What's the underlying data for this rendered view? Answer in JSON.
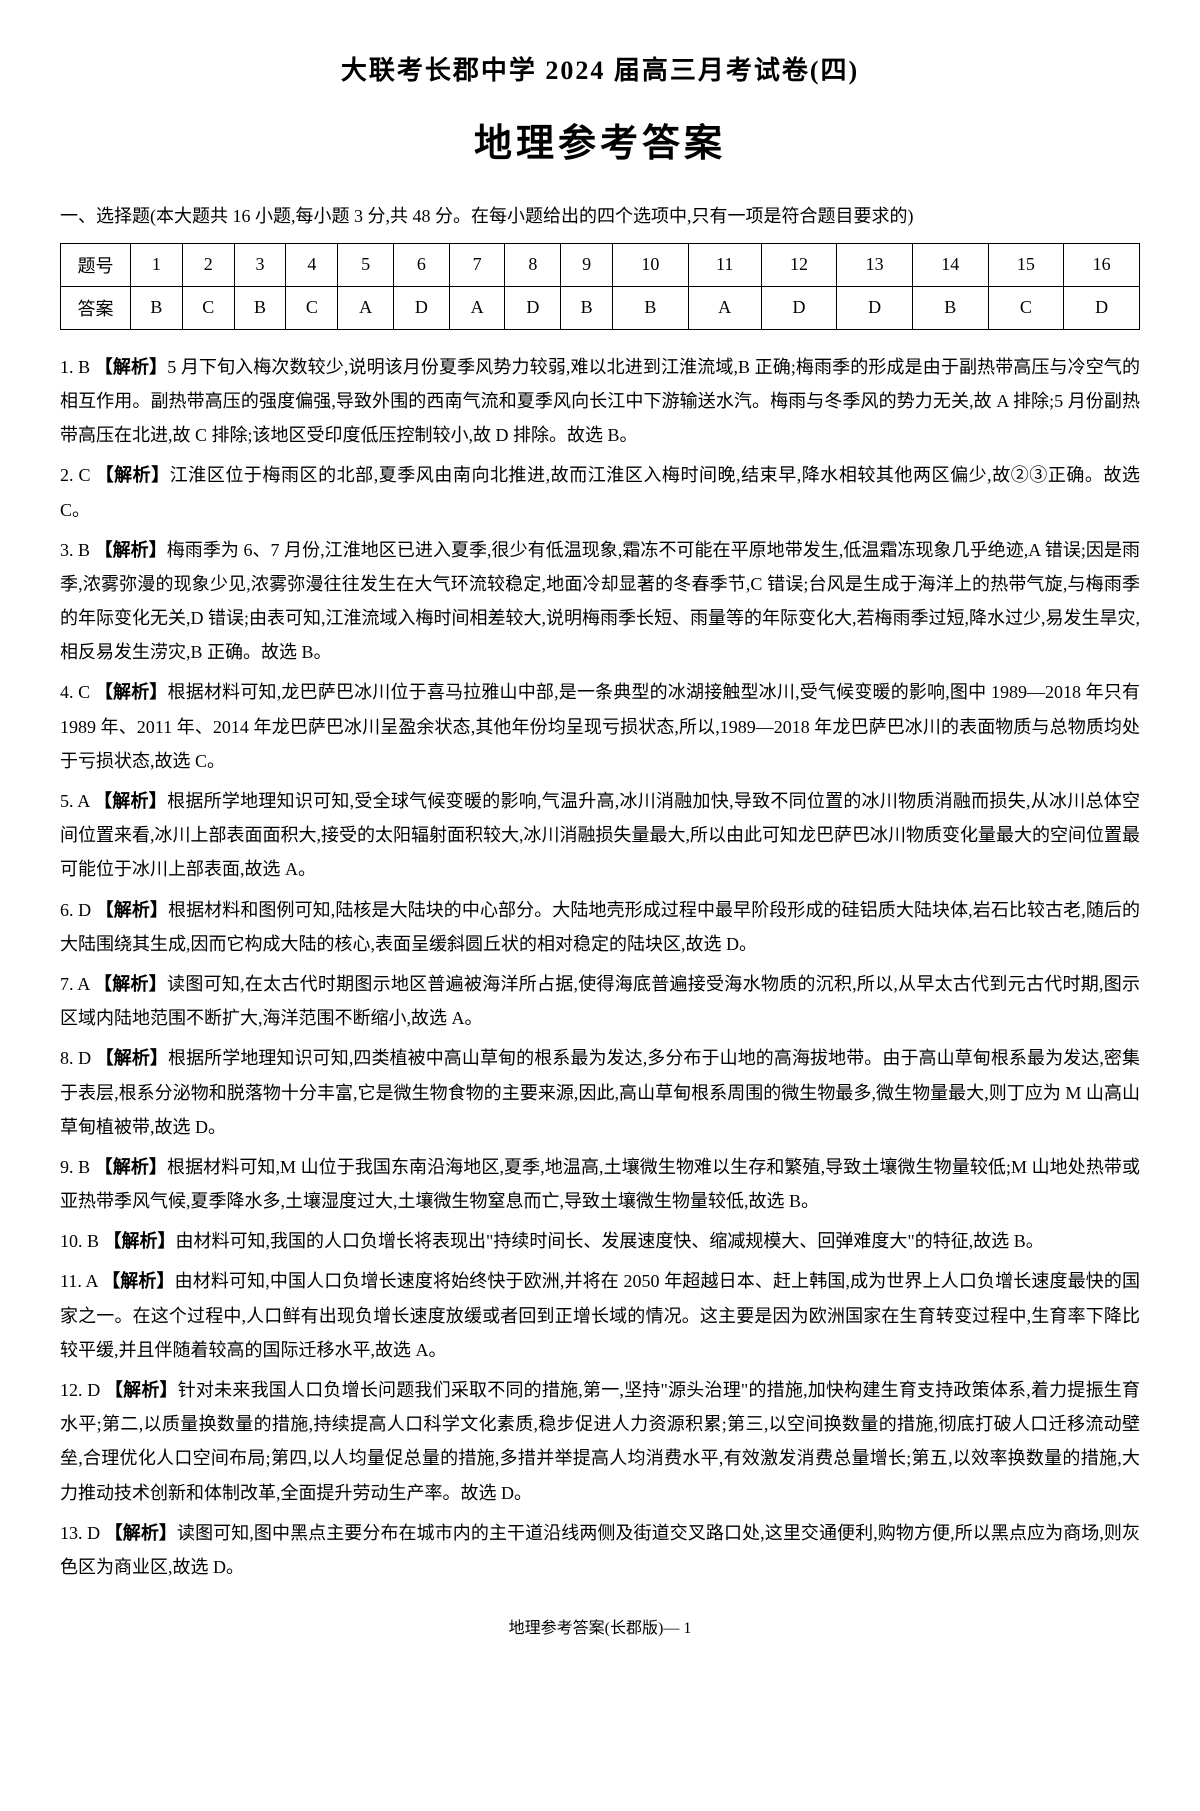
{
  "header": {
    "title_prefix": "大联考",
    "title_main": "长郡中学 2024 届高三月考试卷(四)"
  },
  "main_title": "地理参考答案",
  "section1": {
    "header": "一、选择题(本大题共 16 小题,每小题 3 分,共 48 分。在每小题给出的四个选项中,只有一项是符合题目要求的)"
  },
  "table": {
    "row1_label": "题号",
    "row2_label": "答案",
    "numbers": [
      "1",
      "2",
      "3",
      "4",
      "5",
      "6",
      "7",
      "8",
      "9",
      "10",
      "11",
      "12",
      "13",
      "14",
      "15",
      "16"
    ],
    "answers": [
      "B",
      "C",
      "B",
      "C",
      "A",
      "D",
      "A",
      "D",
      "B",
      "B",
      "A",
      "D",
      "D",
      "B",
      "C",
      "D"
    ]
  },
  "explanations": [
    {
      "num": "1. B",
      "tag": "【解析】",
      "text": "5 月下旬入梅次数较少,说明该月份夏季风势力较弱,难以北进到江淮流域,B 正确;梅雨季的形成是由于副热带高压与冷空气的相互作用。副热带高压的强度偏强,导致外围的西南气流和夏季风向长江中下游输送水汽。梅雨与冬季风的势力无关,故 A 排除;5 月份副热带高压在北进,故 C 排除;该地区受印度低压控制较小,故 D 排除。故选 B。"
    },
    {
      "num": "2. C",
      "tag": "【解析】",
      "text": "江淮区位于梅雨区的北部,夏季风由南向北推进,故而江淮区入梅时间晚,结束早,降水相较其他两区偏少,故②③正确。故选 C。"
    },
    {
      "num": "3. B",
      "tag": "【解析】",
      "text": "梅雨季为 6、7 月份,江淮地区已进入夏季,很少有低温现象,霜冻不可能在平原地带发生,低温霜冻现象几乎绝迹,A 错误;因是雨季,浓雾弥漫的现象少见,浓雾弥漫往往发生在大气环流较稳定,地面冷却显著的冬春季节,C 错误;台风是生成于海洋上的热带气旋,与梅雨季的年际变化无关,D 错误;由表可知,江淮流域入梅时间相差较大,说明梅雨季长短、雨量等的年际变化大,若梅雨季过短,降水过少,易发生旱灾,相反易发生涝灾,B 正确。故选 B。"
    },
    {
      "num": "4. C",
      "tag": "【解析】",
      "text": "根据材料可知,龙巴萨巴冰川位于喜马拉雅山中部,是一条典型的冰湖接触型冰川,受气候变暖的影响,图中 1989—2018 年只有 1989 年、2011 年、2014 年龙巴萨巴冰川呈盈余状态,其他年份均呈现亏损状态,所以,1989—2018 年龙巴萨巴冰川的表面物质与总物质均处于亏损状态,故选 C。"
    },
    {
      "num": "5. A",
      "tag": "【解析】",
      "text": "根据所学地理知识可知,受全球气候变暖的影响,气温升高,冰川消融加快,导致不同位置的冰川物质消融而损失,从冰川总体空间位置来看,冰川上部表面面积大,接受的太阳辐射面积较大,冰川消融损失量最大,所以由此可知龙巴萨巴冰川物质变化量最大的空间位置最可能位于冰川上部表面,故选 A。"
    },
    {
      "num": "6. D",
      "tag": "【解析】",
      "text": "根据材料和图例可知,陆核是大陆块的中心部分。大陆地壳形成过程中最早阶段形成的硅铝质大陆块体,岩石比较古老,随后的大陆围绕其生成,因而它构成大陆的核心,表面呈缓斜圆丘状的相对稳定的陆块区,故选 D。"
    },
    {
      "num": "7. A",
      "tag": "【解析】",
      "text": "读图可知,在太古代时期图示地区普遍被海洋所占据,使得海底普遍接受海水物质的沉积,所以,从早太古代到元古代时期,图示区域内陆地范围不断扩大,海洋范围不断缩小,故选 A。"
    },
    {
      "num": "8. D",
      "tag": "【解析】",
      "text": "根据所学地理知识可知,四类植被中高山草甸的根系最为发达,多分布于山地的高海拔地带。由于高山草甸根系最为发达,密集于表层,根系分泌物和脱落物十分丰富,它是微生物食物的主要来源,因此,高山草甸根系周围的微生物最多,微生物量最大,则丁应为 M 山高山草甸植被带,故选 D。"
    },
    {
      "num": "9. B",
      "tag": "【解析】",
      "text": "根据材料可知,M 山位于我国东南沿海地区,夏季,地温高,土壤微生物难以生存和繁殖,导致土壤微生物量较低;M 山地处热带或亚热带季风气候,夏季降水多,土壤湿度过大,土壤微生物窒息而亡,导致土壤微生物量较低,故选 B。"
    },
    {
      "num": "10. B",
      "tag": "【解析】",
      "text": "由材料可知,我国的人口负增长将表现出\"持续时间长、发展速度快、缩减规模大、回弹难度大\"的特征,故选 B。"
    },
    {
      "num": "11. A",
      "tag": "【解析】",
      "text": "由材料可知,中国人口负增长速度将始终快于欧洲,并将在 2050 年超越日本、赶上韩国,成为世界上人口负增长速度最快的国家之一。在这个过程中,人口鲜有出现负增长速度放缓或者回到正增长域的情况。这主要是因为欧洲国家在生育转变过程中,生育率下降比较平缓,并且伴随着较高的国际迁移水平,故选 A。"
    },
    {
      "num": "12. D",
      "tag": "【解析】",
      "text": "针对未来我国人口负增长问题我们采取不同的措施,第一,坚持\"源头治理\"的措施,加快构建生育支持政策体系,着力提振生育水平;第二,以质量换数量的措施,持续提高人口科学文化素质,稳步促进人力资源积累;第三,以空间换数量的措施,彻底打破人口迁移流动壁垒,合理优化人口空间布局;第四,以人均量促总量的措施,多措并举提高人均消费水平,有效激发消费总量增长;第五,以效率换数量的措施,大力推动技术创新和体制改革,全面提升劳动生产率。故选 D。"
    },
    {
      "num": "13. D",
      "tag": "【解析】",
      "text": "读图可知,图中黑点主要分布在城市内的主干道沿线两侧及街道交叉路口处,这里交通便利,购物方便,所以黑点应为商场,则灰色区为商业区,故选 D。"
    }
  ],
  "footer": "地理参考答案(长郡版)— 1"
}
